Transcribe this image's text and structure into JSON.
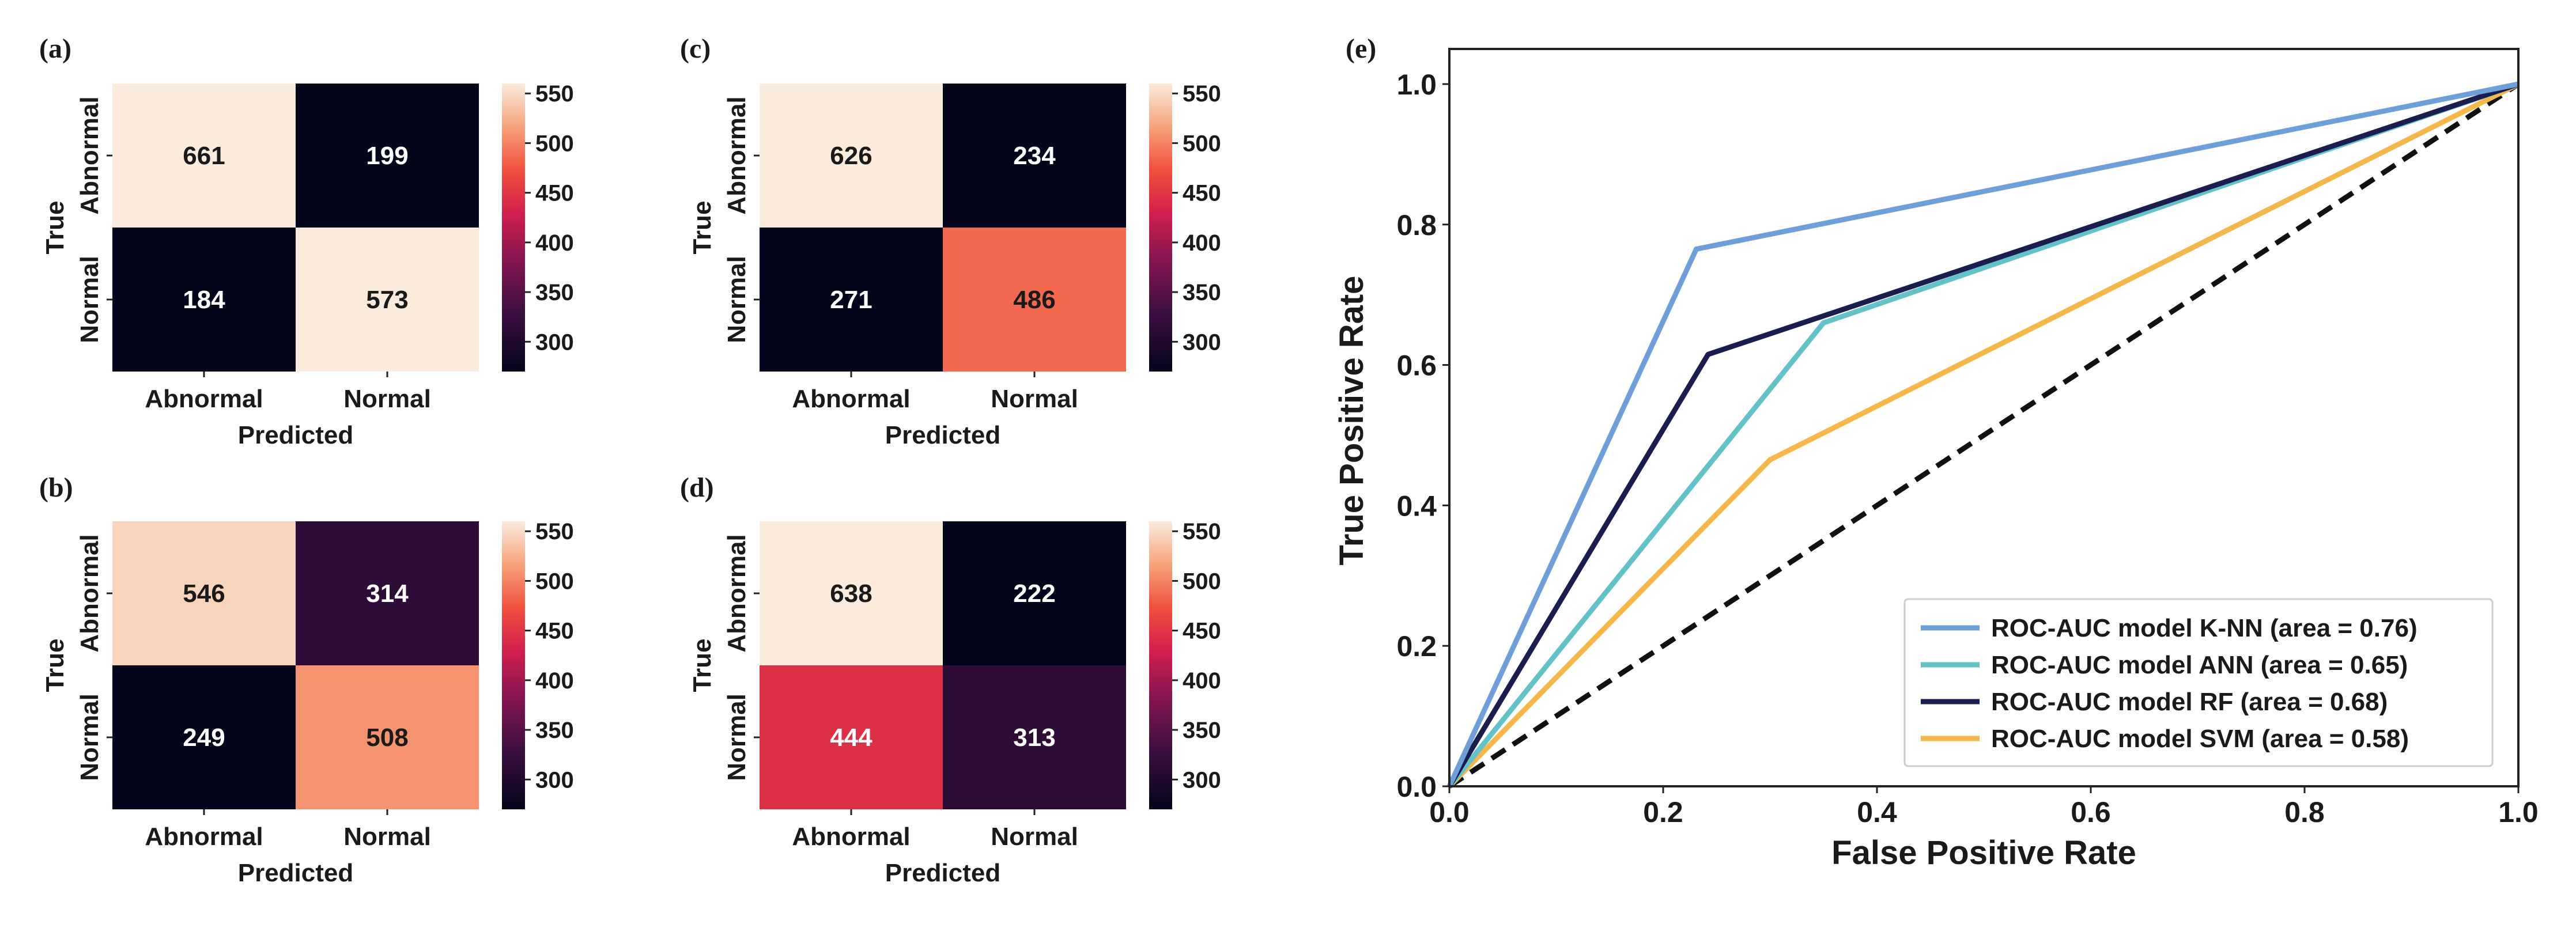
{
  "figure": {
    "panels": [
      {
        "id": "a",
        "label": "(a)"
      },
      {
        "id": "b",
        "label": "(b)"
      },
      {
        "id": "c",
        "label": "(c)"
      },
      {
        "id": "d",
        "label": "(d)"
      }
    ],
    "roc_label": "(e)"
  },
  "chart_data": [
    {
      "type": "heatmap",
      "id": "a",
      "title": "(a)",
      "xlabel": "Predicted",
      "ylabel": "True",
      "x_categories": [
        "Abnormal",
        "Normal"
      ],
      "y_categories": [
        "Abnormal",
        "Normal"
      ],
      "values": [
        [
          661,
          199
        ],
        [
          184,
          573
        ]
      ],
      "colorbar": {
        "range": [
          270,
          560
        ],
        "ticks": [
          300,
          350,
          400,
          450,
          500,
          550
        ]
      }
    },
    {
      "type": "heatmap",
      "id": "b",
      "title": "(b)",
      "xlabel": "Predicted",
      "ylabel": "True",
      "x_categories": [
        "Abnormal",
        "Normal"
      ],
      "y_categories": [
        "Abnormal",
        "Normal"
      ],
      "values": [
        [
          546,
          314
        ],
        [
          249,
          508
        ]
      ],
      "colorbar": {
        "range": [
          270,
          560
        ],
        "ticks": [
          300,
          350,
          400,
          450,
          500,
          550
        ]
      }
    },
    {
      "type": "heatmap",
      "id": "c",
      "title": "(c)",
      "xlabel": "Predicted",
      "ylabel": "True",
      "x_categories": [
        "Abnormal",
        "Normal"
      ],
      "y_categories": [
        "Abnormal",
        "Normal"
      ],
      "values": [
        [
          626,
          234
        ],
        [
          271,
          486
        ]
      ],
      "colorbar": {
        "range": [
          270,
          560
        ],
        "ticks": [
          300,
          350,
          400,
          450,
          500,
          550
        ]
      }
    },
    {
      "type": "heatmap",
      "id": "d",
      "title": "(d)",
      "xlabel": "Predicted",
      "ylabel": "True",
      "x_categories": [
        "Abnormal",
        "Normal"
      ],
      "y_categories": [
        "Abnormal",
        "Normal"
      ],
      "values": [
        [
          638,
          222
        ],
        [
          444,
          313
        ]
      ],
      "colorbar": {
        "range": [
          270,
          560
        ],
        "ticks": [
          300,
          350,
          400,
          450,
          500,
          550
        ]
      }
    },
    {
      "type": "line",
      "id": "e",
      "title": "(e)",
      "xlabel": "False Positive Rate",
      "ylabel": "True Positive Rate",
      "xlim": [
        0,
        1
      ],
      "ylim": [
        0,
        1.05
      ],
      "xticks": [
        "0.0",
        "0.2",
        "0.4",
        "0.6",
        "0.8",
        "1.0"
      ],
      "yticks": [
        "0.0",
        "0.2",
        "0.4",
        "0.6",
        "0.8",
        "1.0"
      ],
      "legend_position": "lower-right",
      "series": [
        {
          "name": "ROC-AUC model K-NN (area = 0.76)",
          "color": "#6f9fd8",
          "x": [
            0,
            0.231,
            1
          ],
          "y": [
            0,
            0.765,
            1
          ]
        },
        {
          "name": "ROC-AUC model ANN (area = 0.65)",
          "color": "#62c2c8",
          "x": [
            0,
            0.35,
            1
          ],
          "y": [
            0,
            0.66,
            1
          ]
        },
        {
          "name": "ROC-AUC model RF (area = 0.68)",
          "color": "#1c1d4f",
          "x": [
            0,
            0.242,
            1
          ],
          "y": [
            0,
            0.615,
            1
          ]
        },
        {
          "name": "ROC-AUC model SVM (area = 0.58)",
          "color": "#f5b64a",
          "x": [
            0,
            0.3,
            1
          ],
          "y": [
            0,
            0.465,
            1
          ]
        }
      ],
      "baseline": {
        "x": [
          0,
          1
        ],
        "y": [
          0,
          1
        ],
        "color": "#111111",
        "style": "dashed"
      }
    }
  ]
}
